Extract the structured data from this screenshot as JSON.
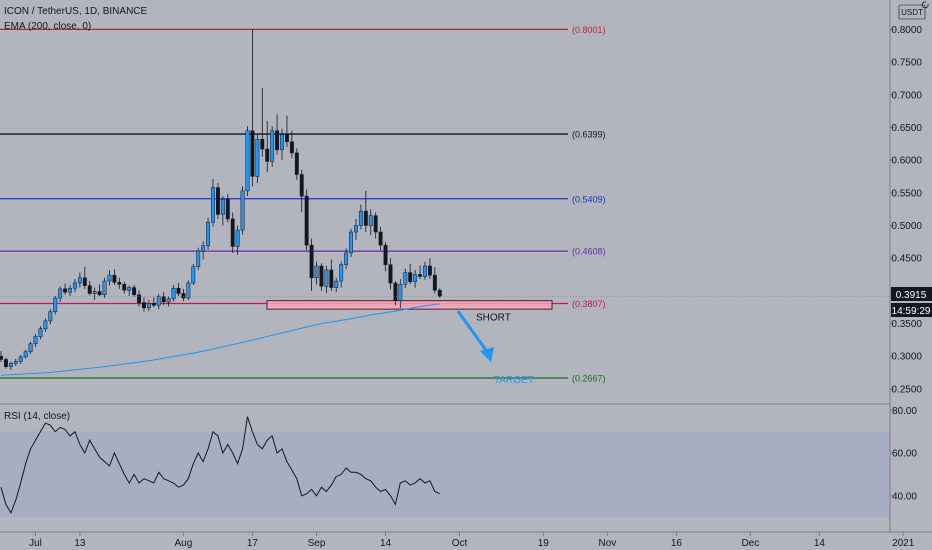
{
  "header": {
    "symbol": "ICON / TetherUS, 1D, BINANCE",
    "ema_label": "EMA (200, close, 0)",
    "currency": "USDT",
    "corner_icon": "settings-icon"
  },
  "chart_data": {
    "type": "candlestick",
    "price_axis": {
      "ticks": [
        "0.8000",
        "0.7500",
        "0.7000",
        "0.6500",
        "0.6000",
        "0.5500",
        "0.5000",
        "0.4500",
        "0.4000",
        "0.3500",
        "0.3000",
        "0.2500"
      ],
      "range": [
        0.233,
        0.845
      ]
    },
    "time_axis": {
      "labels": [
        "Jul",
        "13",
        "Aug",
        "17",
        "Sep",
        "14",
        "Oct",
        "19",
        "Nov",
        "16",
        "Dec",
        "14",
        "2021"
      ]
    },
    "current_price": "0.3915",
    "countdown": "14:59:29",
    "levels": [
      {
        "value": 0.8001,
        "label": "(0.8001)",
        "color": "#b22833"
      },
      {
        "value": 0.6399,
        "label": "(0.6399)",
        "color": "#131722"
      },
      {
        "value": 0.5409,
        "label": "(0.5409)",
        "color": "#2130c8"
      },
      {
        "value": 0.4608,
        "label": "(0.4608)",
        "color": "#6a2ba8"
      },
      {
        "value": 0.3807,
        "label": "(0.3807)",
        "color": "#c2185b"
      },
      {
        "value": 0.2667,
        "label": "(0.2667)",
        "color": "#1b6e20"
      }
    ],
    "annotations": {
      "short": "SHORT",
      "target": "TARGET"
    },
    "candles": [
      [
        0.3,
        0.308,
        0.291,
        0.295
      ],
      [
        0.295,
        0.298,
        0.281,
        0.284
      ],
      [
        0.284,
        0.292,
        0.279,
        0.289
      ],
      [
        0.289,
        0.296,
        0.285,
        0.292
      ],
      [
        0.292,
        0.302,
        0.288,
        0.299
      ],
      [
        0.299,
        0.31,
        0.296,
        0.307
      ],
      [
        0.307,
        0.322,
        0.303,
        0.319
      ],
      [
        0.319,
        0.334,
        0.314,
        0.33
      ],
      [
        0.33,
        0.346,
        0.326,
        0.342
      ],
      [
        0.342,
        0.358,
        0.337,
        0.354
      ],
      [
        0.354,
        0.372,
        0.349,
        0.368
      ],
      [
        0.368,
        0.392,
        0.364,
        0.389
      ],
      [
        0.389,
        0.407,
        0.383,
        0.403
      ],
      [
        0.403,
        0.411,
        0.394,
        0.398
      ],
      [
        0.398,
        0.409,
        0.392,
        0.404
      ],
      [
        0.404,
        0.418,
        0.398,
        0.412
      ],
      [
        0.412,
        0.428,
        0.405,
        0.42
      ],
      [
        0.42,
        0.437,
        0.403,
        0.408
      ],
      [
        0.408,
        0.415,
        0.393,
        0.396
      ],
      [
        0.396,
        0.405,
        0.386,
        0.399
      ],
      [
        0.399,
        0.41,
        0.391,
        0.394
      ],
      [
        0.394,
        0.42,
        0.389,
        0.415
      ],
      [
        0.415,
        0.432,
        0.408,
        0.424
      ],
      [
        0.424,
        0.433,
        0.409,
        0.413
      ],
      [
        0.413,
        0.42,
        0.403,
        0.41
      ],
      [
        0.41,
        0.414,
        0.396,
        0.401
      ],
      [
        0.401,
        0.408,
        0.392,
        0.405
      ],
      [
        0.405,
        0.409,
        0.391,
        0.394
      ],
      [
        0.394,
        0.401,
        0.376,
        0.382
      ],
      [
        0.382,
        0.39,
        0.368,
        0.374
      ],
      [
        0.374,
        0.386,
        0.369,
        0.381
      ],
      [
        0.381,
        0.39,
        0.375,
        0.378
      ],
      [
        0.378,
        0.395,
        0.372,
        0.391
      ],
      [
        0.391,
        0.398,
        0.378,
        0.383
      ],
      [
        0.383,
        0.392,
        0.376,
        0.388
      ],
      [
        0.388,
        0.409,
        0.384,
        0.404
      ],
      [
        0.404,
        0.412,
        0.392,
        0.396
      ],
      [
        0.396,
        0.403,
        0.384,
        0.389
      ],
      [
        0.389,
        0.416,
        0.386,
        0.412
      ],
      [
        0.412,
        0.441,
        0.409,
        0.437
      ],
      [
        0.437,
        0.466,
        0.432,
        0.461
      ],
      [
        0.461,
        0.476,
        0.448,
        0.469
      ],
      [
        0.469,
        0.512,
        0.463,
        0.505
      ],
      [
        0.505,
        0.571,
        0.498,
        0.558
      ],
      [
        0.558,
        0.565,
        0.51,
        0.517
      ],
      [
        0.517,
        0.545,
        0.5,
        0.54
      ],
      [
        0.54,
        0.548,
        0.505,
        0.51
      ],
      [
        0.51,
        0.52,
        0.458,
        0.468
      ],
      [
        0.468,
        0.5,
        0.455,
        0.493
      ],
      [
        0.493,
        0.56,
        0.486,
        0.553
      ],
      [
        0.553,
        0.652,
        0.545,
        0.645
      ],
      [
        0.645,
        0.8,
        0.56,
        0.575
      ],
      [
        0.575,
        0.64,
        0.565,
        0.632
      ],
      [
        0.632,
        0.71,
        0.605,
        0.617
      ],
      [
        0.617,
        0.66,
        0.582,
        0.598
      ],
      [
        0.598,
        0.652,
        0.59,
        0.645
      ],
      [
        0.645,
        0.67,
        0.608,
        0.616
      ],
      [
        0.616,
        0.648,
        0.6,
        0.639
      ],
      [
        0.639,
        0.668,
        0.62,
        0.628
      ],
      [
        0.628,
        0.645,
        0.603,
        0.611
      ],
      [
        0.611,
        0.618,
        0.57,
        0.578
      ],
      [
        0.578,
        0.585,
        0.52,
        0.545
      ],
      [
        0.545,
        0.555,
        0.462,
        0.47
      ],
      [
        0.47,
        0.48,
        0.4,
        0.42
      ],
      [
        0.42,
        0.445,
        0.41,
        0.438
      ],
      [
        0.438,
        0.442,
        0.4,
        0.407
      ],
      [
        0.407,
        0.438,
        0.397,
        0.432
      ],
      [
        0.432,
        0.448,
        0.4,
        0.405
      ],
      [
        0.405,
        0.42,
        0.398,
        0.415
      ],
      [
        0.415,
        0.445,
        0.405,
        0.44
      ],
      [
        0.44,
        0.465,
        0.433,
        0.458
      ],
      [
        0.458,
        0.495,
        0.452,
        0.49
      ],
      [
        0.49,
        0.51,
        0.478,
        0.5
      ],
      [
        0.5,
        0.532,
        0.494,
        0.522
      ],
      [
        0.522,
        0.553,
        0.49,
        0.5
      ],
      [
        0.5,
        0.525,
        0.485,
        0.515
      ],
      [
        0.515,
        0.52,
        0.48,
        0.49
      ],
      [
        0.49,
        0.498,
        0.462,
        0.47
      ],
      [
        0.47,
        0.475,
        0.43,
        0.44
      ],
      [
        0.44,
        0.45,
        0.402,
        0.412
      ],
      [
        0.412,
        0.415,
        0.378,
        0.385
      ],
      [
        0.385,
        0.418,
        0.374,
        0.41
      ],
      [
        0.41,
        0.434,
        0.404,
        0.428
      ],
      [
        0.428,
        0.441,
        0.41,
        0.414
      ],
      [
        0.414,
        0.432,
        0.405,
        0.425
      ],
      [
        0.425,
        0.439,
        0.418,
        0.422
      ],
      [
        0.422,
        0.445,
        0.417,
        0.438
      ],
      [
        0.438,
        0.45,
        0.418,
        0.424
      ],
      [
        0.424,
        0.436,
        0.396,
        0.401
      ],
      [
        0.401,
        0.404,
        0.389,
        0.392
      ]
    ],
    "ema": [
      [
        0,
        0.271
      ],
      [
        10,
        0.275
      ],
      [
        20,
        0.283
      ],
      [
        30,
        0.293
      ],
      [
        40,
        0.306
      ],
      [
        50,
        0.323
      ],
      [
        60,
        0.341
      ],
      [
        65,
        0.35
      ],
      [
        70,
        0.356
      ],
      [
        75,
        0.363
      ],
      [
        80,
        0.369
      ],
      [
        85,
        0.376
      ],
      [
        89,
        0.38
      ]
    ],
    "rsi": {
      "label": "RSI (14, close)",
      "ticks": [
        "80.00",
        "60.00",
        "40.00"
      ],
      "range": [
        24,
        82
      ],
      "band": [
        30,
        70
      ],
      "values": [
        44,
        36,
        32,
        38,
        46,
        55,
        62,
        66,
        70,
        74,
        73,
        70,
        72,
        71,
        68,
        70,
        64,
        60,
        66,
        62,
        58,
        56,
        54,
        60,
        55,
        50,
        46,
        50,
        46,
        48,
        47,
        46,
        51,
        48,
        47,
        46,
        44,
        45,
        48,
        55,
        60,
        56,
        62,
        70,
        68,
        60,
        64,
        60,
        55,
        62,
        77,
        70,
        64,
        62,
        66,
        68,
        60,
        62,
        56,
        52,
        48,
        40,
        41,
        43,
        40,
        44,
        42,
        45,
        49,
        50,
        53,
        51,
        51,
        50,
        48,
        47,
        44,
        42,
        43,
        40,
        36,
        46,
        47,
        45,
        46,
        48,
        46,
        47,
        42,
        41
      ]
    }
  }
}
